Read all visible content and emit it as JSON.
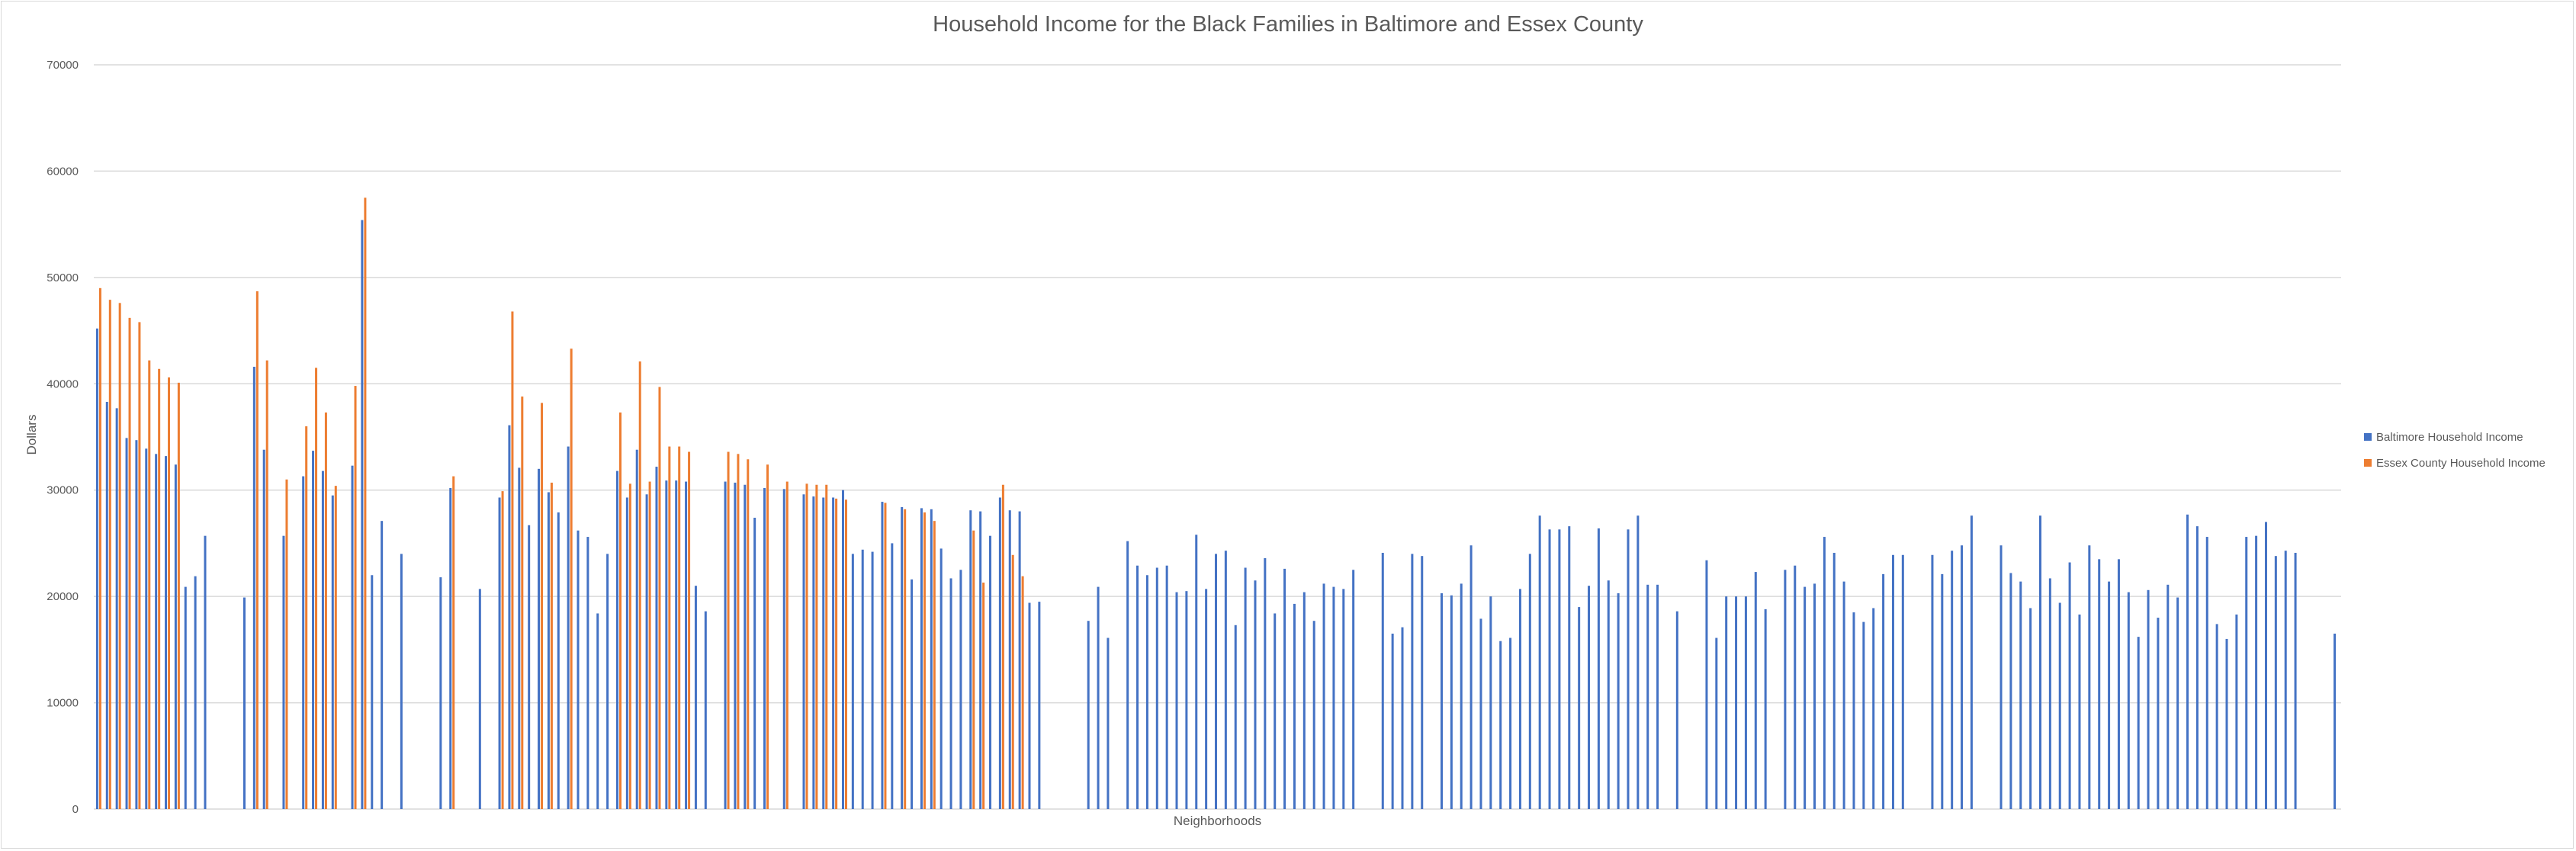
{
  "colors": {
    "baltimore": "#4472c4",
    "essex": "#ed7d31",
    "grid": "#d9d9d9",
    "text": "#595959"
  },
  "chart_data": {
    "type": "bar",
    "title": "Household Income for the Black Families in Baltimore and Essex County",
    "xlabel": "Neighborhoods",
    "ylabel": "Dollars",
    "ylim": [
      0,
      70000
    ],
    "yticks": [
      0,
      10000,
      20000,
      30000,
      40000,
      50000,
      60000,
      70000
    ],
    "ytick_labels": [
      "0",
      "10000",
      "20000",
      "30000",
      "40000",
      "50000",
      "60000",
      "70000"
    ],
    "grid": true,
    "legend_position": "right",
    "series": [
      {
        "name": "Baltimore Household Income",
        "values": [
          45200,
          38300,
          37700,
          34900,
          34700,
          33900,
          33400,
          33200,
          32400,
          20900,
          21900,
          25700,
          null,
          null,
          null,
          19900,
          41600,
          33800,
          null,
          25700,
          null,
          31300,
          33700,
          31800,
          29500,
          null,
          32300,
          55400,
          22000,
          27100,
          null,
          24000,
          null,
          null,
          null,
          21800,
          30200,
          null,
          null,
          20700,
          null,
          29300,
          36100,
          32100,
          26700,
          32000,
          29800,
          27900,
          34100,
          26200,
          25600,
          18400,
          24000,
          31800,
          29300,
          33800,
          29600,
          32200,
          30900,
          30900,
          30800,
          21000,
          18600,
          null,
          30800,
          30700,
          30500,
          27400,
          30200,
          null,
          30100,
          null,
          29600,
          29400,
          29300,
          29300,
          30000,
          24000,
          24400,
          24200,
          28900,
          25000,
          28400,
          21600,
          28300,
          28200,
          24500,
          21700,
          22500,
          28100,
          28000,
          25700,
          29300,
          28100,
          28000,
          19400,
          19500,
          null,
          null,
          null,
          null,
          17700,
          20900,
          16100,
          null,
          25200,
          22900,
          22000,
          22700,
          22900,
          20400,
          20500,
          25800,
          20700,
          24000,
          24300,
          17300,
          22700,
          21500,
          23600,
          18400,
          22600,
          19300,
          20400,
          17700,
          21200,
          20900,
          20700,
          22500,
          null,
          null,
          24100,
          16500,
          17100,
          24000,
          23800,
          null,
          20300,
          20100,
          21200,
          24800,
          17900,
          20000,
          15800,
          16100,
          20700,
          24000,
          27600,
          26300,
          26300,
          26600,
          19000,
          21000,
          26400,
          21500,
          20300,
          26300,
          27600,
          21100,
          21100,
          null,
          18600,
          null,
          null,
          23400,
          16100,
          20000,
          20000,
          20000,
          22300,
          18800,
          null,
          22500,
          22900,
          20900,
          21200,
          25600,
          24100,
          21400,
          18500,
          17600,
          18900,
          22100,
          23900,
          23900,
          null,
          null,
          23900,
          22100,
          24300,
          24800,
          27600,
          null,
          null,
          24800,
          22200,
          21400,
          18900,
          27600,
          21700,
          19400,
          23200,
          18300,
          24800,
          23500,
          21400,
          23500,
          20400,
          16200,
          20600,
          18000,
          21100,
          19900,
          27700,
          26600,
          25600,
          17400,
          16000,
          18300,
          25600,
          25700,
          27000,
          23800,
          24300,
          24100,
          null,
          null,
          null,
          16500
        ]
      },
      {
        "name": "Essex County Household Income",
        "values": [
          49000,
          47900,
          47600,
          46200,
          45800,
          42200,
          41400,
          40600,
          40100,
          null,
          null,
          null,
          null,
          null,
          null,
          null,
          48700,
          42200,
          null,
          31000,
          null,
          36000,
          41500,
          37300,
          30400,
          null,
          39800,
          57500,
          null,
          null,
          null,
          null,
          null,
          null,
          null,
          null,
          31300,
          null,
          null,
          null,
          null,
          29900,
          46800,
          38800,
          null,
          38200,
          30700,
          null,
          43300,
          null,
          null,
          null,
          null,
          37300,
          30600,
          42100,
          30800,
          39700,
          34100,
          34100,
          33600,
          null,
          null,
          null,
          33600,
          33400,
          32900,
          null,
          32400,
          null,
          30800,
          null,
          30600,
          30500,
          30500,
          29200,
          29100,
          null,
          null,
          null,
          28800,
          null,
          28200,
          null,
          27900,
          27100,
          null,
          null,
          null,
          26200,
          21300,
          null,
          30500,
          23900,
          21900,
          null,
          null,
          null,
          null,
          null,
          null,
          null,
          null,
          null,
          null,
          null,
          null,
          null,
          null,
          null,
          null,
          null,
          null,
          null,
          null,
          null,
          null,
          null,
          null,
          null,
          null,
          null,
          null,
          null,
          null,
          null,
          null,
          null,
          null,
          null,
          null,
          null,
          null,
          null,
          null,
          null,
          null,
          null,
          null,
          null,
          null,
          null,
          null,
          null,
          null,
          null,
          null,
          null,
          null,
          null,
          null,
          null,
          null,
          null,
          null,
          null,
          null,
          null,
          null,
          null,
          null,
          null,
          null,
          null,
          null,
          null,
          null,
          null,
          null,
          null,
          null,
          null,
          null,
          null,
          null,
          null,
          null,
          null,
          null,
          null,
          null,
          null,
          null,
          null,
          null,
          null,
          null,
          null,
          null,
          null,
          null,
          null,
          null,
          null,
          null,
          null,
          null,
          null,
          null,
          null,
          null,
          null,
          null,
          null,
          null,
          null,
          null,
          null,
          null,
          null,
          null,
          null,
          null,
          null,
          null,
          null,
          null,
          null,
          null,
          null,
          null,
          null,
          null,
          null,
          null,
          null,
          null,
          null,
          null,
          null,
          null,
          null,
          null,
          null,
          null,
          null,
          null,
          null,
          null,
          null,
          null,
          null,
          null,
          null,
          null,
          null,
          null,
          null,
          null
        ]
      }
    ]
  }
}
